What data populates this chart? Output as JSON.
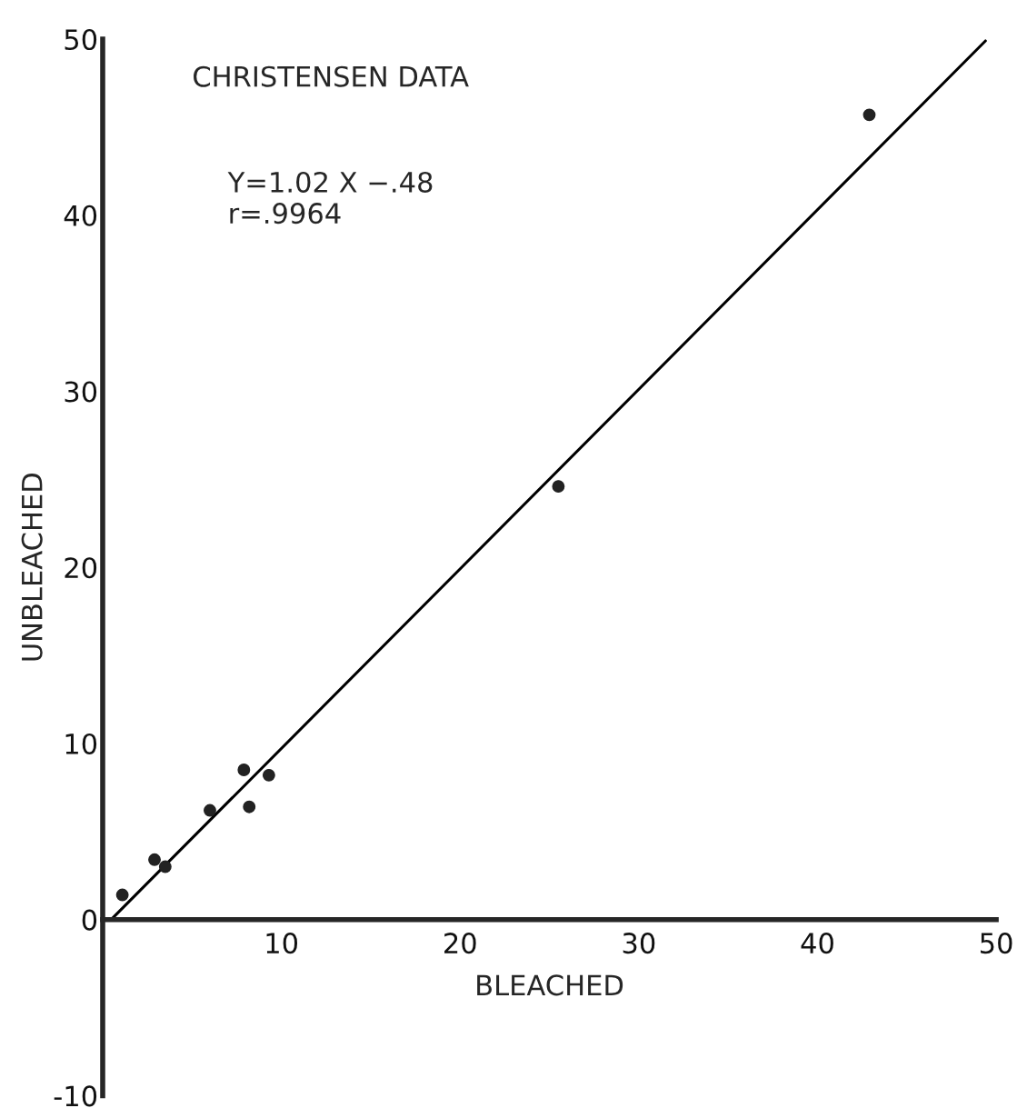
{
  "chart_data": {
    "type": "scatter",
    "title": "CHRISTENSEN DATA",
    "xlabel": "BLEACHED",
    "ylabel": "UNBLEACHED",
    "annotations": [
      "Y=1.02 X −.48\nr=.9964"
    ],
    "series": [
      {
        "color": "#222222",
        "marker": "circle",
        "x": [
          1.1,
          2.9,
          3.5,
          6.0,
          7.9,
          8.2,
          9.3,
          25.5,
          42.9
        ],
        "values": [
          1.4,
          3.4,
          3.0,
          6.2,
          8.5,
          6.4,
          8.2,
          24.6,
          45.7
        ]
      },
      {
        "type": "line",
        "color": "#000000",
        "marker": "none",
        "x": [
          0.5,
          49.4
        ],
        "values": [
          0.03,
          49.9
        ]
      }
    ],
    "line_style": "solid",
    "xlim": [
      0,
      50
    ],
    "ylim": [
      -10,
      50
    ],
    "xticks": [
      10,
      20,
      30,
      40,
      50
    ],
    "yticks": [
      -10,
      0,
      10,
      20,
      30,
      40,
      50
    ],
    "grid": false,
    "legend": false
  }
}
